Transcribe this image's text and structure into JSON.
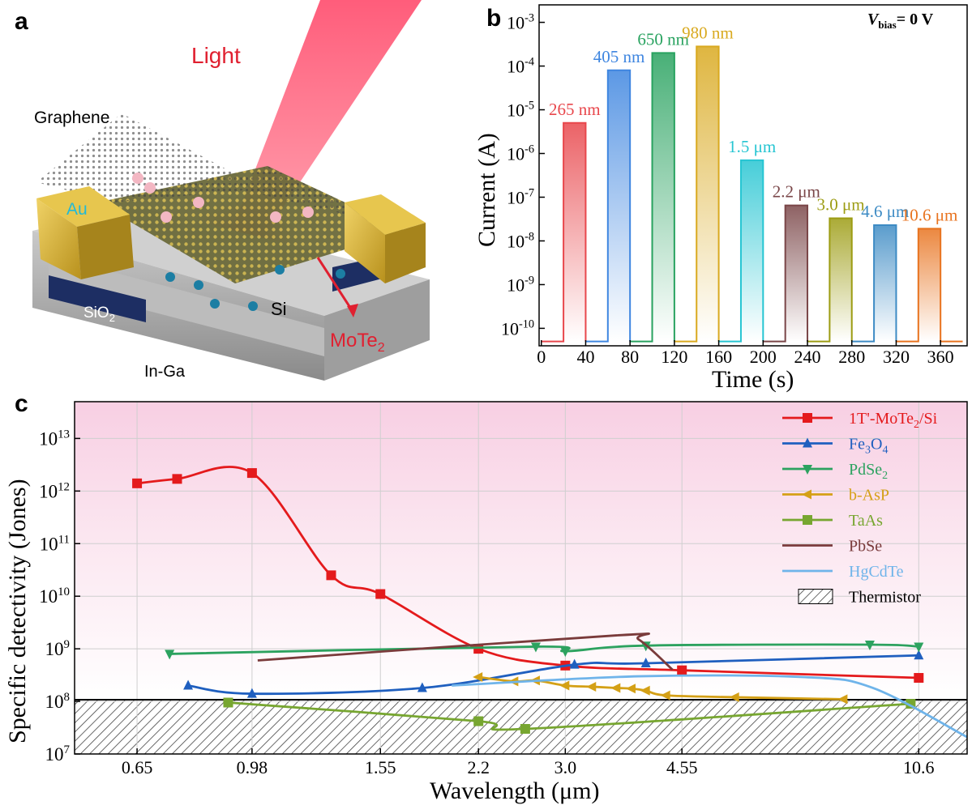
{
  "panels": {
    "a": {
      "label": "a",
      "texts": {
        "light": "Light",
        "graphene": "Graphene",
        "au": "Au",
        "sio2": "SiO",
        "sio2_sub": "2",
        "si": "Si",
        "mote2": "MoTe",
        "mote2_sub": "2",
        "inga": "In-Ga"
      }
    },
    "b": {
      "label": "b",
      "bias_v": "V",
      "bias_sub": "bias",
      "bias_rest": "= 0 V"
    },
    "c": {
      "label": "c"
    }
  },
  "chart_data": [
    {
      "id": "b",
      "type": "line",
      "xlabel": "Time (s)",
      "ylabel": "Current (A)",
      "xlim": [
        -2,
        384
      ],
      "ylim_log10": [
        -10.4,
        -2.6
      ],
      "yscale": "log",
      "xticks": [
        "0",
        "40",
        "80",
        "120",
        "160",
        "200",
        "240",
        "280",
        "320",
        "360"
      ],
      "yticks": [
        {
          "base": "10",
          "exp": "-10"
        },
        {
          "base": "10",
          "exp": "-9"
        },
        {
          "base": "10",
          "exp": "-8"
        },
        {
          "base": "10",
          "exp": "-7"
        },
        {
          "base": "10",
          "exp": "-6"
        },
        {
          "base": "10",
          "exp": "-5"
        },
        {
          "base": "10",
          "exp": "-4"
        },
        {
          "base": "10",
          "exp": "-3"
        }
      ],
      "baseline_current": 5e-11,
      "series": [
        {
          "label": "265 nm",
          "color": "#e8474c",
          "on": [
            20,
            40
          ],
          "on_current": 5e-06
        },
        {
          "label": "405 nm",
          "color": "#3f86e0",
          "on": [
            60,
            80
          ],
          "on_current": 8e-05
        },
        {
          "label": "650 nm",
          "color": "#28a25f",
          "on": [
            100,
            120
          ],
          "on_current": 0.0002
        },
        {
          "label": "980 nm",
          "color": "#d9a91f",
          "on": [
            140,
            160
          ],
          "on_current": 0.00028
        },
        {
          "label": "1.5 μm",
          "color": "#26c5d2",
          "on": [
            180,
            200
          ],
          "on_current": 7e-07
        },
        {
          "label": "2.2 μm",
          "color": "#7a4648",
          "on": [
            220,
            240
          ],
          "on_current": 6.5e-08
        },
        {
          "label": "3.0 μm",
          "color": "#9c9c13",
          "on": [
            260,
            280
          ],
          "on_current": 3.3e-08
        },
        {
          "label": "4.6 μm",
          "color": "#3d8bc4",
          "on": [
            300,
            320
          ],
          "on_current": 2.3e-08
        },
        {
          "label": "10.6 μm",
          "color": "#e8731f",
          "on": [
            340,
            360
          ],
          "on_current": 1.9e-08
        }
      ]
    },
    {
      "id": "c",
      "type": "line",
      "xlabel": "Wavelength (μm)",
      "ylabel": "Specific detectivity (Jones)",
      "xscale": "log",
      "yscale": "log",
      "xlim": [
        0.52,
        12.6
      ],
      "ylim": [
        10000000.0,
        50000000000000.0
      ],
      "xticks": [
        "0.65",
        "0.98",
        "1.55",
        "2.2",
        "3.0",
        "4.55",
        "10.6"
      ],
      "yticks": [
        {
          "base": "10",
          "exp": "7"
        },
        {
          "base": "10",
          "exp": "8"
        },
        {
          "base": "10",
          "exp": "9"
        },
        {
          "base": "10",
          "exp": "10"
        },
        {
          "base": "10",
          "exp": "11"
        },
        {
          "base": "10",
          "exp": "12"
        },
        {
          "base": "10",
          "exp": "13"
        }
      ],
      "thermistor_max": 100000000.0,
      "legend_position": "top-right",
      "series": [
        {
          "name": "1T'-MoTe",
          "name_sub": "2",
          "name_tail": "/Si",
          "color": "#e41a1c",
          "marker": "square",
          "x": [
            0.65,
            0.75,
            0.98,
            1.3,
            1.55,
            2.2,
            3.0,
            4.55,
            10.6
          ],
          "y": [
            1400000000000.0,
            1700000000000.0,
            2200000000000.0,
            25000000000.0,
            11000000000.0,
            1000000000.0,
            480000000.0,
            390000000.0,
            280000000.0
          ]
        },
        {
          "name": "Fe",
          "name_sub": "3",
          "name_tail": "O",
          "name_sub2": "4",
          "color": "#1f5fbf",
          "marker": "triangle-up",
          "x": [
            0.78,
            0.98,
            1.8,
            3.1,
            4.0,
            10.6
          ],
          "y": [
            200000000.0,
            140000000.0,
            180000000.0,
            500000000.0,
            530000000.0,
            750000000.0
          ]
        },
        {
          "name": "PdSe",
          "name_sub": "2",
          "color": "#2ca25f",
          "marker": "triangle-down",
          "x": [
            0.73,
            2.7,
            3.0,
            4.0,
            8.9,
            10.6
          ],
          "y": [
            800000000.0,
            1100000000.0,
            900000000.0,
            1150000000.0,
            1200000000.0,
            1100000000.0
          ]
        },
        {
          "name": "b-AsP",
          "color": "#d4a016",
          "marker": "triangle-left",
          "x": [
            2.2,
            2.5,
            2.7,
            3.0,
            3.3,
            3.6,
            3.8,
            4.0,
            4.3,
            5.5,
            8.1
          ],
          "y": [
            290000000.0,
            240000000.0,
            250000000.0,
            200000000.0,
            190000000.0,
            180000000.0,
            175000000.0,
            160000000.0,
            130000000.0,
            120000000.0,
            110000000.0
          ]
        },
        {
          "name": "TaAs",
          "color": "#77a630",
          "marker": "square",
          "x": [
            0.9,
            2.2,
            2.6,
            10.3
          ],
          "y": [
            95000000.0,
            42000000.0,
            30000000.0,
            90000000.0
          ]
        },
        {
          "name": "PbSe",
          "color": "#7a3b3b",
          "marker": "none",
          "x": [
            1.0,
            3.6,
            3.9,
            4.4
          ],
          "y": [
            600000000.0,
            1800000000.0,
            1500000000.0,
            400000000.0
          ]
        },
        {
          "name": "HgCdTe",
          "color": "#6fb4ea",
          "marker": "none",
          "x": [
            2.0,
            3.9,
            7.0,
            9.0,
            12.6
          ],
          "y": [
            200000000.0,
            300000000.0,
            290000000.0,
            180000000.0,
            21000000.0
          ]
        }
      ],
      "legend_thermistor": "Thermistor"
    }
  ]
}
